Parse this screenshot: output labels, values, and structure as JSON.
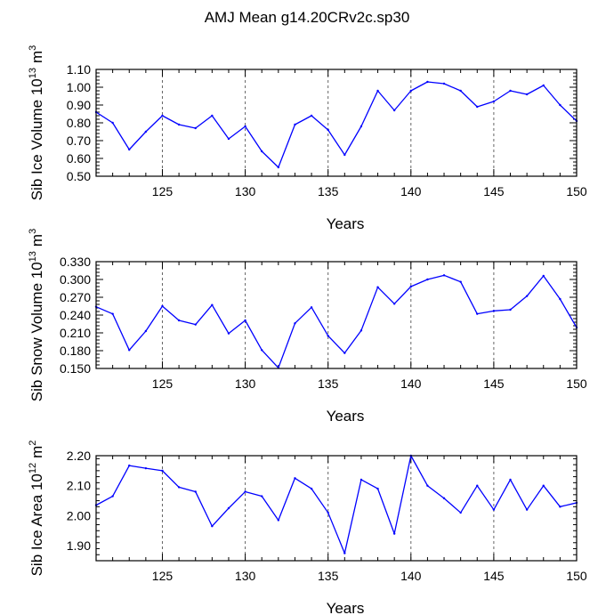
{
  "title": "AMJ Mean g14.20CRv2c.sp30",
  "colors": {
    "line": "#0000ff",
    "axis": "#000000",
    "grid": "#666666"
  },
  "chart_data": [
    {
      "type": "line",
      "xlabel": "Years",
      "ylabel_text": "Sib Ice Volume 10",
      "ylabel_sup": "13",
      "ylabel_unit": "m",
      "ylabel_unit_sup": "3",
      "xlim": [
        121,
        150
      ],
      "ylim": [
        0.5,
        1.1
      ],
      "xticks": [
        "125",
        "130",
        "135",
        "140",
        "145",
        "150"
      ],
      "yticks": [
        "0.50",
        "0.60",
        "0.70",
        "0.80",
        "0.90",
        "1.00",
        "1.10"
      ],
      "x": [
        121,
        122,
        123,
        124,
        125,
        126,
        127,
        128,
        129,
        130,
        131,
        132,
        133,
        134,
        135,
        136,
        137,
        138,
        139,
        140,
        141,
        142,
        143,
        144,
        145,
        146,
        147,
        148,
        149,
        150
      ],
      "values": [
        0.86,
        0.8,
        0.65,
        0.75,
        0.84,
        0.79,
        0.77,
        0.84,
        0.71,
        0.78,
        0.64,
        0.55,
        0.79,
        0.84,
        0.76,
        0.62,
        0.78,
        0.98,
        0.87,
        0.98,
        1.03,
        1.02,
        0.98,
        0.89,
        0.92,
        0.98,
        0.96,
        1.01,
        0.9,
        0.81
      ]
    },
    {
      "type": "line",
      "xlabel": "Years",
      "ylabel_text": "Sib Snow Volume 10",
      "ylabel_sup": "13",
      "ylabel_unit": "m",
      "ylabel_unit_sup": "3",
      "xlim": [
        121,
        150
      ],
      "ylim": [
        0.15,
        0.33
      ],
      "xticks": [
        "125",
        "130",
        "135",
        "140",
        "145",
        "150"
      ],
      "yticks": [
        "0.150",
        "0.180",
        "0.210",
        "0.240",
        "0.270",
        "0.300",
        "0.330"
      ],
      "x": [
        121,
        122,
        123,
        124,
        125,
        126,
        127,
        128,
        129,
        130,
        131,
        132,
        133,
        134,
        135,
        136,
        137,
        138,
        139,
        140,
        141,
        142,
        143,
        144,
        145,
        146,
        147,
        148,
        149,
        150
      ],
      "values": [
        0.254,
        0.242,
        0.181,
        0.213,
        0.255,
        0.231,
        0.224,
        0.257,
        0.209,
        0.231,
        0.181,
        0.151,
        0.226,
        0.253,
        0.205,
        0.176,
        0.214,
        0.287,
        0.259,
        0.288,
        0.3,
        0.307,
        0.296,
        0.242,
        0.247,
        0.249,
        0.272,
        0.306,
        0.267,
        0.219
      ]
    },
    {
      "type": "line",
      "xlabel": "Years",
      "ylabel_text": "Sib Ice Area 10",
      "ylabel_sup": "12",
      "ylabel_unit": "m",
      "ylabel_unit_sup": "2",
      "xlim": [
        121,
        150
      ],
      "ylim": [
        1.85,
        2.2
      ],
      "xticks": [
        "125",
        "130",
        "135",
        "140",
        "145",
        "150"
      ],
      "yticks": [
        "1.90",
        "2.00",
        "2.10",
        "2.20"
      ],
      "x": [
        121,
        122,
        123,
        124,
        125,
        126,
        127,
        128,
        129,
        130,
        131,
        132,
        133,
        134,
        135,
        136,
        137,
        138,
        139,
        140,
        141,
        142,
        143,
        144,
        145,
        146,
        147,
        148,
        149,
        150
      ],
      "values": [
        2.035,
        2.065,
        2.167,
        2.158,
        2.15,
        2.095,
        2.08,
        1.965,
        2.025,
        2.08,
        2.065,
        1.985,
        2.125,
        2.09,
        2.01,
        1.875,
        2.12,
        2.09,
        1.94,
        2.2,
        2.1,
        2.058,
        2.01,
        2.1,
        2.02,
        2.12,
        2.02,
        2.1,
        2.03,
        2.043
      ]
    }
  ]
}
